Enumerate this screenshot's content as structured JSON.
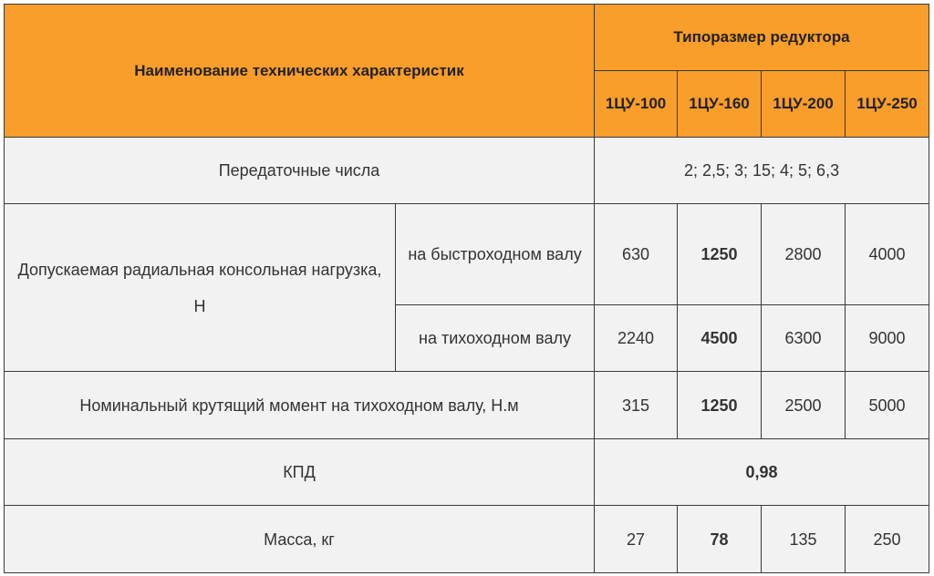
{
  "table": {
    "header": {
      "title": "Наименование технических характеристик",
      "group": "Типоразмер редуктора",
      "columns": [
        "1ЦУ-100",
        "1ЦУ-160",
        "1ЦУ-200",
        "1ЦУ-250"
      ]
    },
    "rows": [
      {
        "label": "Передаточные числа",
        "value": "2; 2,5; 3; 15; 4; 5; 6,3"
      },
      {
        "label": "Допускаемая радиальная консольная нагрузка, Н",
        "parts": [
          {
            "label": "на быстроходном валу",
            "values": [
              630,
              1250,
              2800,
              4000
            ]
          },
          {
            "label": "на тихоходном валу",
            "values": [
              2240,
              4500,
              6300,
              9000
            ]
          }
        ]
      },
      {
        "label": "Номинальный крутящий момент на тихоходном валу, Н.м",
        "values": [
          315,
          1250,
          2500,
          5000
        ]
      },
      {
        "label": "КПД",
        "value": "0,98"
      },
      {
        "label": "Масса, кг",
        "values": [
          27,
          78,
          135,
          250
        ]
      }
    ]
  }
}
